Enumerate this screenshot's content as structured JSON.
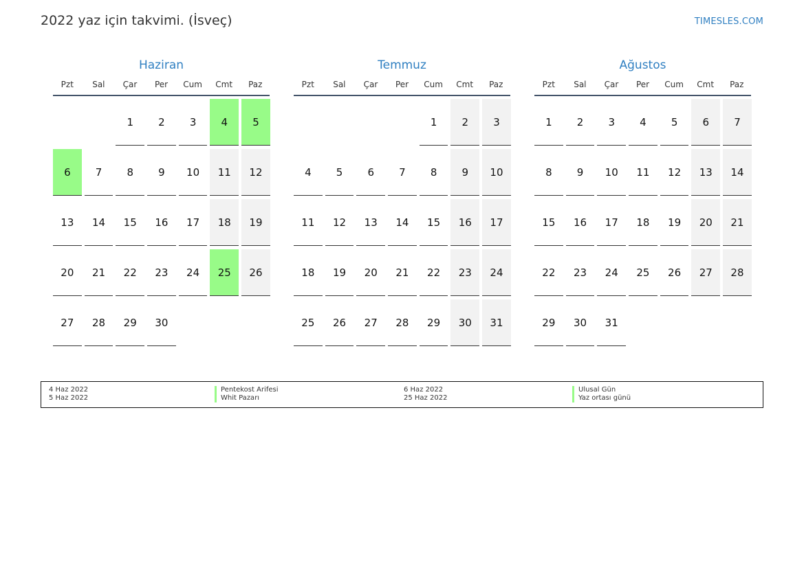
{
  "header": {
    "title": "2022 yaz için takvimi. (İsveç)",
    "site": "TIMESLES.COM"
  },
  "weekdays": [
    "Pzt",
    "Sal",
    "Çar",
    "Per",
    "Cum",
    "Cmt",
    "Paz"
  ],
  "months": [
    {
      "name": "Haziran",
      "offset": 2,
      "days": 30,
      "holidays": [
        4,
        5,
        6,
        25
      ]
    },
    {
      "name": "Temmuz",
      "offset": 4,
      "days": 31,
      "holidays": []
    },
    {
      "name": "Ağustos",
      "offset": 0,
      "days": 31,
      "holidays": []
    }
  ],
  "legend": [
    {
      "date": "4 Haz 2022",
      "name": "Pentekost Arifesi"
    },
    {
      "date": "5 Haz 2022",
      "name": "Whit Pazarı"
    },
    {
      "date": "6 Haz 2022",
      "name": "Ulusal Gün"
    },
    {
      "date": "25 Haz 2022",
      "name": "Yaz ortası günü"
    }
  ],
  "colors": {
    "holiday": "#98fb88",
    "weekend": "#f2f2f2",
    "month_title": "#2f7fc1",
    "rule": "#44546a"
  }
}
